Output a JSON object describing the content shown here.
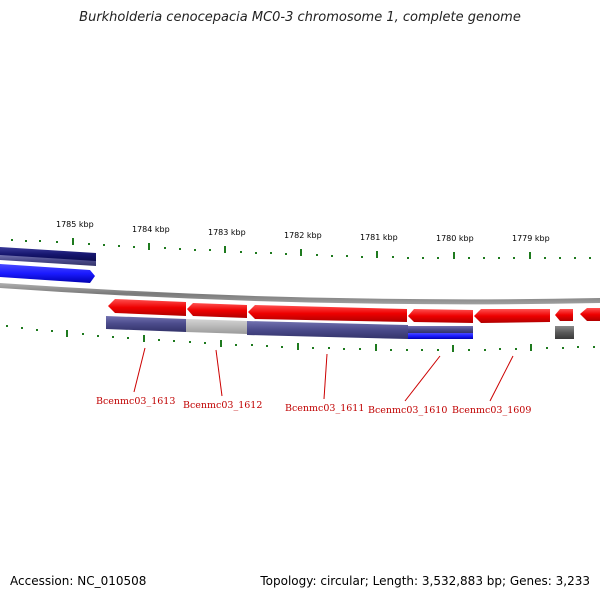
{
  "title": "Burkholderia cenocepacia MC0-3 chromosome 1, complete genome",
  "footer": {
    "accession": "Accession: NC_010508",
    "summary": "Topology: circular; Length: 3,532,883 bp; Genes: 3,233"
  },
  "scale": {
    "unit": "kbp",
    "ticks": [
      "1785 kbp",
      "1784 kbp",
      "1783 kbp",
      "1782 kbp",
      "1781 kbp",
      "1780 kbp",
      "1779 kbp"
    ]
  },
  "genes": [
    {
      "name": "Bcenmc03_1613"
    },
    {
      "name": "Bcenmc03_1612"
    },
    {
      "name": "Bcenmc03_1611"
    },
    {
      "name": "Bcenmc03_1610"
    },
    {
      "name": "Bcenmc03_1609"
    }
  ],
  "colors": {
    "forward_gene": "#1a1aff",
    "reverse_gene": "#ee0000",
    "cds_dark": "#4a4a8a",
    "cds_gray": "#b8b8b8",
    "backbone": "#888888",
    "tick": "#1e7a1e",
    "label": "#c00000"
  }
}
